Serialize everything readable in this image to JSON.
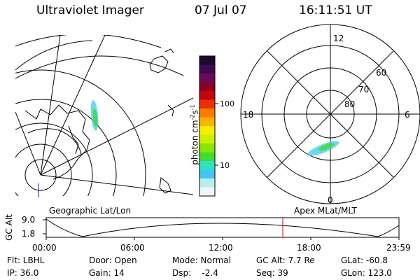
{
  "header": {
    "instrument": "Ultraviolet Imager",
    "date": "07 Jul 07",
    "time": "16:11:51 UT"
  },
  "colorbar": {
    "unit_prefix": "photon cm",
    "unit_exp1": "-2",
    "unit_mid": "s",
    "unit_exp2": "-1",
    "tick_100": "100",
    "tick_10": "10",
    "colors": [
      "#1a0a2e",
      "#3d0a50",
      "#6a0a5c",
      "#8a0020",
      "#c80010",
      "#e83000",
      "#ff7a00",
      "#ffb000",
      "#f8ec00",
      "#c8f000",
      "#8ae600",
      "#3ede30",
      "#30e0c0",
      "#40c8f0",
      "#b8eef0",
      "#eef6f6"
    ]
  },
  "polar": {
    "mlt_12": "12",
    "mlt_18": "18",
    "mlt_6": "6",
    "mlt_0": "0",
    "lat_60": "60",
    "lat_70": "70",
    "lat_80": "80"
  },
  "labels": {
    "geo": "Geographic Lat/Lon",
    "apex": "Apex MLat/MLT"
  },
  "orbit": {
    "axis_label": "GC Alt",
    "y_max": "9.0",
    "y_min": "1.8",
    "x_ticks": [
      "00:00",
      "06:00",
      "12:00",
      "18:00",
      "23:59"
    ]
  },
  "info": {
    "flt": "Flt: LBHL",
    "ip": "IP: 36.0",
    "door": "Door: Open",
    "gain": "Gain: 14",
    "mode": "Mode: Normal",
    "dsp": "Dsp:    -2.4",
    "gcalt": "GC Alt: 7.7 Re",
    "seq": "Seq: 39",
    "glat": "GLat: -60.8",
    "glon": "GLon: 123.0"
  }
}
